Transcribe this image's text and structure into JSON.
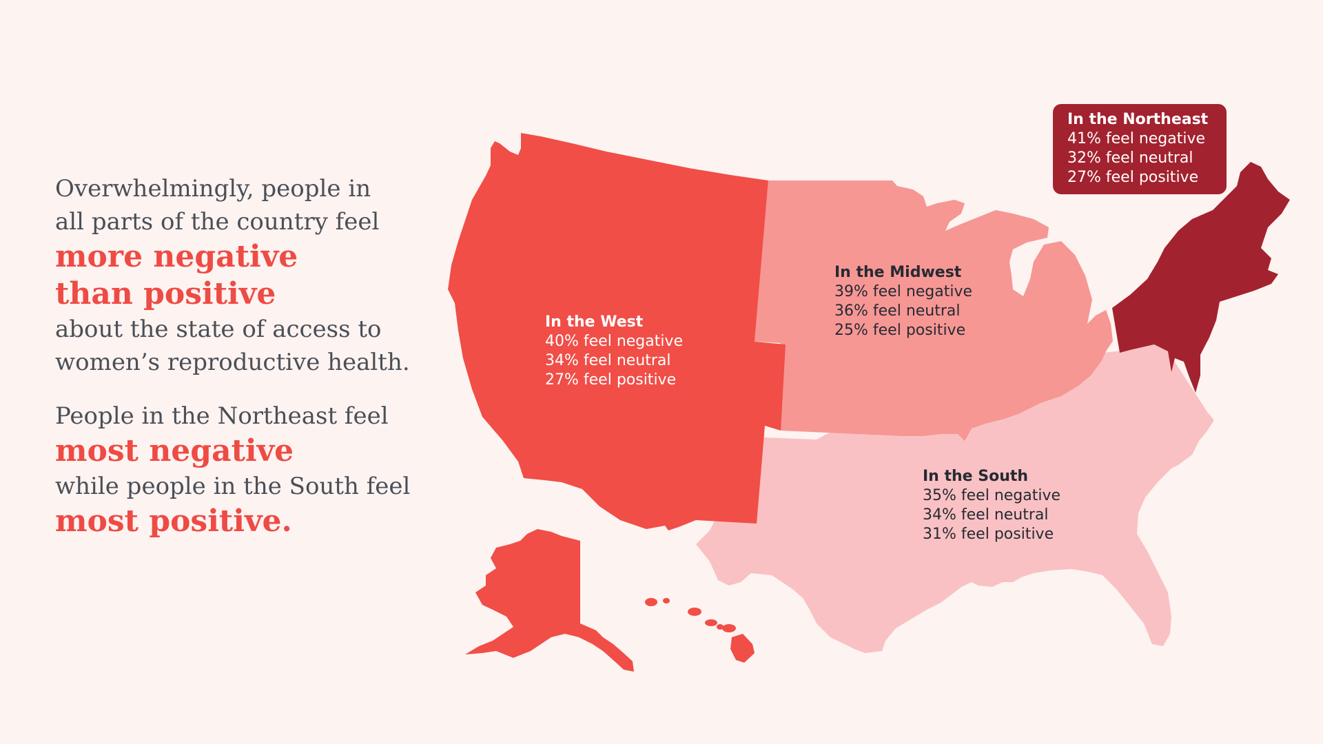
{
  "headline": {
    "line1": "Overwhelmingly, people in",
    "line2": "all parts of the country feel",
    "emph1": "more negative",
    "emph2": "than positive",
    "line3": "about the state of access to",
    "line4": "women’s reproductive health."
  },
  "subhead": {
    "line1": "People in the Northeast feel",
    "emph1": "most negative",
    "line2": "while people in the South feel",
    "emph2": "most positive."
  },
  "regions": {
    "west": {
      "title": "In the West",
      "negative": "40% feel negative",
      "neutral": "34% feel neutral",
      "positive": "27% feel positive",
      "color": "#f04e47"
    },
    "midwest": {
      "title": "In the Midwest",
      "negative": "39% feel negative",
      "neutral": "36% feel neutral",
      "positive": "25% feel positive",
      "color": "#f69794"
    },
    "south": {
      "title": "In the South",
      "negative": "35% feel negative",
      "neutral": "34% feel neutral",
      "positive": "31% feel positive",
      "color": "#f9c1c3"
    },
    "northeast": {
      "title": "In the Northeast",
      "negative": "41% feel negative",
      "neutral": "32% feel neutral",
      "positive": "27% feel positive",
      "color": "#a3222f"
    }
  },
  "colors": {
    "background": "#fdf3f1",
    "accent": "#ee4b44",
    "body_text": "#4a4f57"
  }
}
